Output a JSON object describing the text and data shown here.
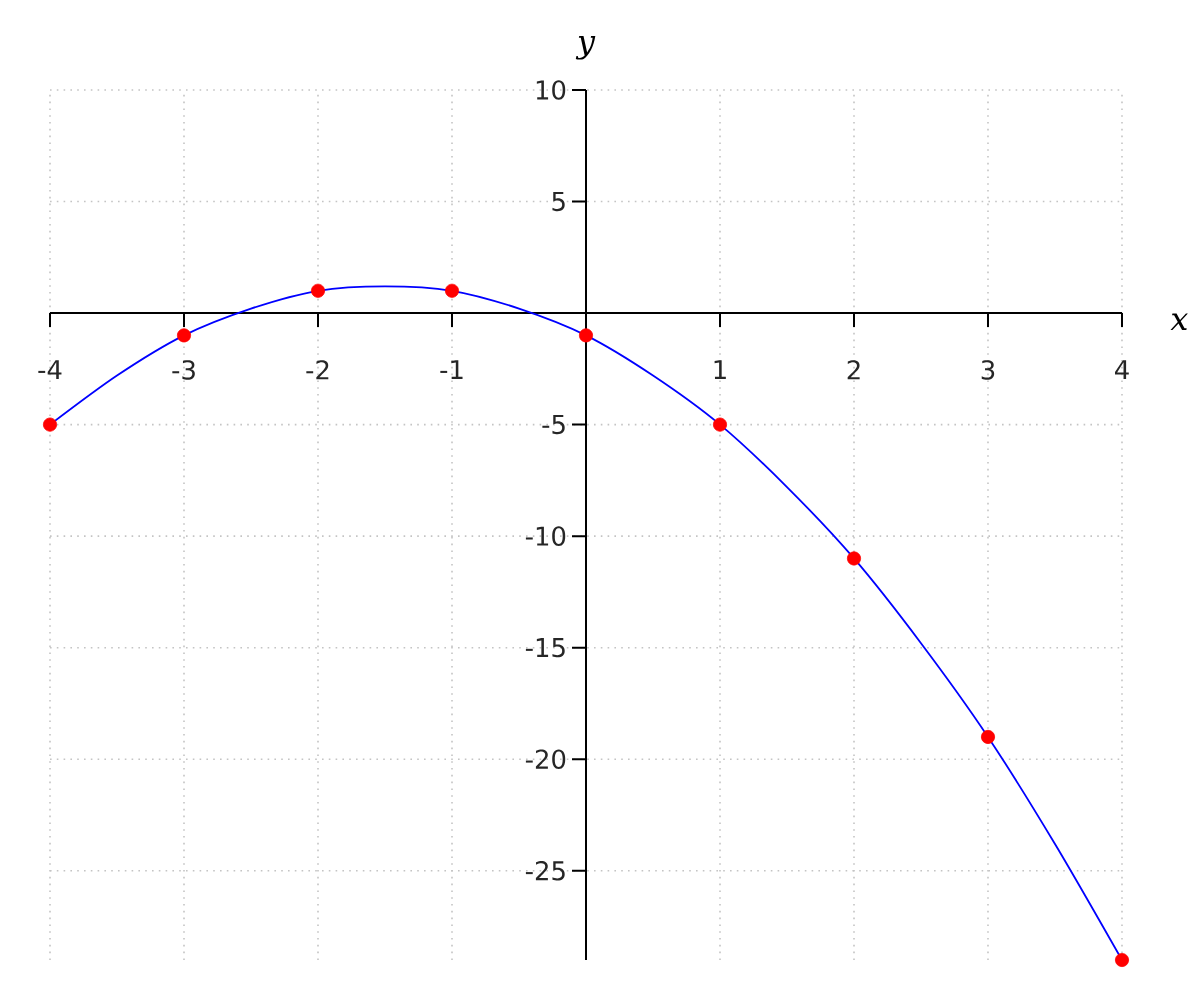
{
  "chart_data": {
    "type": "line",
    "xlabel": "x",
    "ylabel": "y",
    "xlim": [
      -4,
      4
    ],
    "ylim": [
      -29,
      10
    ],
    "xticks": [
      -4,
      -3,
      -2,
      -1,
      1,
      2,
      3,
      4
    ],
    "yticks": [
      -25,
      -20,
      -15,
      -10,
      -5,
      5,
      10
    ],
    "grid": true,
    "series": [
      {
        "color": "#0000ff",
        "marker": "none",
        "x": [
          -4,
          -3.5,
          -3,
          -2.5,
          -2,
          -1.5,
          -1,
          -0.5,
          0,
          0.5,
          1,
          1.5,
          2,
          2.5,
          3,
          3.5,
          4
        ],
        "values": [
          -5,
          -2.8,
          -1,
          0.2,
          1,
          1.2,
          1,
          0.2,
          -1,
          -2.8,
          -5,
          -7.8,
          -11,
          -14.8,
          -19,
          -23.8,
          -29
        ]
      },
      {
        "type": "scatter",
        "color": "#ff0000",
        "marker": "circle",
        "x": [
          -4,
          -3,
          -2,
          -1,
          0,
          1,
          2,
          3,
          4
        ],
        "values": [
          -5,
          -1,
          1,
          1,
          -1,
          -5,
          -11,
          -19,
          -29
        ]
      }
    ]
  }
}
